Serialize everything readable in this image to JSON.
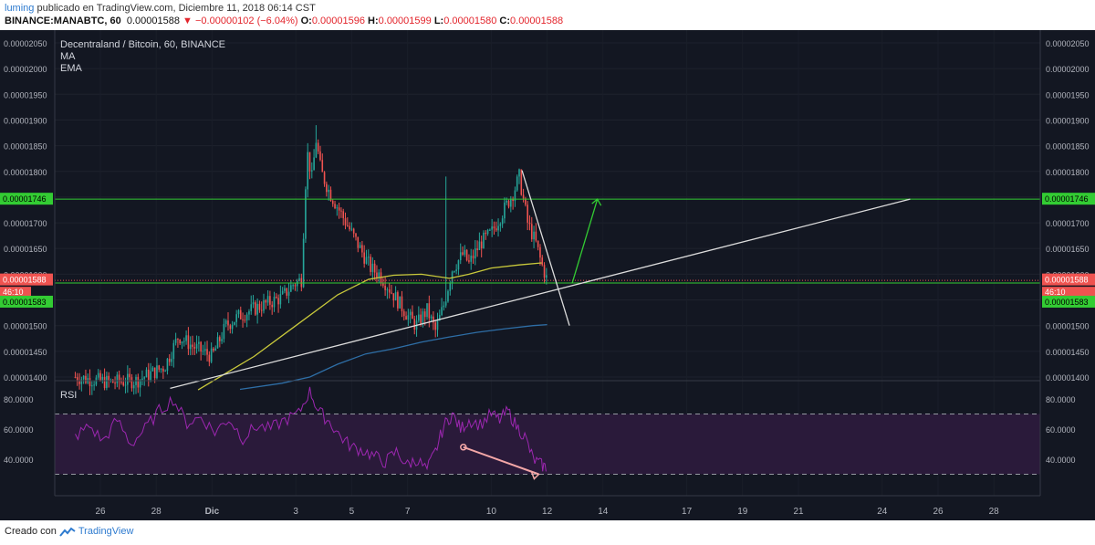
{
  "header": {
    "user": "luming",
    "published": "publicado en TradingView.com, Diciembre 11, 2018 06:14 CST",
    "symbol": "BINANCE:MANABTC, 60",
    "last": "0.00001588",
    "arrow": "▼",
    "change": "−0.00000102 (−6.04%)",
    "o_label": "O:",
    "o": "0.00001596",
    "h_label": "H:",
    "h": "0.00001599",
    "l_label": "L:",
    "l": "0.00001580",
    "c_label": "C:",
    "c": "0.00001588"
  },
  "legend": {
    "title": "Decentraland / Bitcoin, 60, BINANCE",
    "ma": "MA",
    "ema": "EMA"
  },
  "rsi_label": "RSI",
  "price_tags": {
    "resistance": "0.00001746",
    "current": "0.00001588",
    "countdown": "46:10",
    "support": "0.00001583"
  },
  "footer": {
    "prefix": "Creado con",
    "brand": "TradingView"
  },
  "colors": {
    "background": "#131722",
    "up": "#26a69a",
    "down": "#ef5350",
    "ma": "#c9c93b",
    "ema": "#2e6ea6",
    "rsi": "#9c27b0",
    "levels": "#33cc33",
    "trend": "#dcdcdc"
  },
  "chart_data": [
    {
      "type": "candlestick",
      "title": "Decentraland / Bitcoin, 60, BINANCE",
      "ylim": [
        1.375e-05,
        2.065e-05
      ],
      "y_ticks": [
        "0.00002050",
        "0.00002000",
        "0.00001950",
        "0.00001900",
        "0.00001850",
        "0.00001800",
        "0.00001750",
        "0.00001700",
        "0.00001650",
        "0.00001600",
        "0.00001550",
        "0.00001500",
        "0.00001450",
        "0.00001400"
      ],
      "x_ticks": [
        "26",
        "28",
        "Dic",
        "3",
        "5",
        "7",
        "10",
        "12",
        "14",
        "17",
        "19",
        "21",
        "24",
        "26",
        "28"
      ],
      "price_path": [
        [
          25.1,
          1400
        ],
        [
          26.3,
          1390
        ],
        [
          27.3,
          1393
        ],
        [
          28.3,
          1420
        ],
        [
          28.8,
          1480
        ],
        [
          29.3,
          1460
        ],
        [
          30.0,
          1440
        ],
        [
          30.5,
          1500
        ],
        [
          31.0,
          1520
        ],
        [
          31.6,
          1535
        ],
        [
          32.5,
          1555
        ],
        [
          32.9,
          1580
        ],
        [
          33.2,
          1590
        ],
        [
          33.4,
          1840
        ],
        [
          33.6,
          1780
        ],
        [
          33.7,
          1870
        ],
        [
          33.9,
          1800
        ],
        [
          34.2,
          1760
        ],
        [
          34.6,
          1720
        ],
        [
          35.0,
          1680
        ],
        [
          35.4,
          1640
        ],
        [
          35.7,
          1610
        ],
        [
          36.0,
          1600
        ],
        [
          36.5,
          1560
        ],
        [
          37.0,
          1520
        ],
        [
          37.3,
          1500
        ],
        [
          37.7,
          1530
        ],
        [
          38.0,
          1490
        ],
        [
          38.3,
          1540
        ],
        [
          38.6,
          1610
        ],
        [
          39.0,
          1640
        ],
        [
          39.2,
          1620
        ],
        [
          39.6,
          1660
        ],
        [
          40.0,
          1680
        ],
        [
          40.4,
          1720
        ],
        [
          40.8,
          1760
        ],
        [
          41.0,
          1790
        ],
        [
          41.3,
          1700
        ],
        [
          41.6,
          1660
        ],
        [
          41.8,
          1620
        ],
        [
          42.0,
          1588
        ]
      ],
      "series": [
        {
          "name": "MA",
          "values": [
            [
              29.5,
              1375
            ],
            [
              31.5,
              1440
            ],
            [
              33.0,
              1500
            ],
            [
              34.5,
              1560
            ],
            [
              35.6,
              1590
            ],
            [
              36.5,
              1598
            ],
            [
              37.5,
              1600
            ],
            [
              38.5,
              1592
            ],
            [
              39.2,
              1600
            ],
            [
              40.0,
              1612
            ],
            [
              41.0,
              1618
            ],
            [
              41.8,
              1622
            ]
          ]
        },
        {
          "name": "EMA",
          "values": [
            [
              31.0,
              1376
            ],
            [
              32.5,
              1388
            ],
            [
              33.5,
              1400
            ],
            [
              34.5,
              1425
            ],
            [
              35.5,
              1445
            ],
            [
              36.5,
              1455
            ],
            [
              37.5,
              1468
            ],
            [
              38.5,
              1478
            ],
            [
              39.5,
              1487
            ],
            [
              40.5,
              1494
            ],
            [
              41.5,
              1500
            ],
            [
              42.0,
              1502
            ]
          ]
        }
      ],
      "levels": [
        {
          "label": "0.00001746",
          "y": 1746
        },
        {
          "label": "0.00001583",
          "y": 1583
        },
        {
          "label": "0.00001588",
          "y": 1588
        }
      ],
      "annotations": {
        "trendline": [
          [
            28.5,
            1378
          ],
          [
            55.0,
            1746
          ]
        ],
        "descending": [
          [
            41.1,
            1802
          ],
          [
            42.8,
            1500
          ]
        ],
        "arrow": [
          [
            42.9,
            1583
          ],
          [
            43.8,
            1746
          ]
        ]
      }
    },
    {
      "type": "line",
      "title": "RSI",
      "ylim": [
        25,
        92
      ],
      "y_ticks": [
        "80.0000",
        "60.0000",
        "40.0000"
      ],
      "bands": [
        30,
        70
      ],
      "rsi_path": [
        [
          25.1,
          55
        ],
        [
          25.6,
          62
        ],
        [
          26.1,
          52
        ],
        [
          26.6,
          66
        ],
        [
          27.1,
          50
        ],
        [
          27.6,
          60
        ],
        [
          28.1,
          72
        ],
        [
          28.6,
          80
        ],
        [
          29.1,
          64
        ],
        [
          29.6,
          68
        ],
        [
          30.1,
          58
        ],
        [
          30.6,
          67
        ],
        [
          31.1,
          54
        ],
        [
          31.6,
          62
        ],
        [
          32.1,
          60
        ],
        [
          32.6,
          66
        ],
        [
          33.1,
          70
        ],
        [
          33.5,
          86
        ],
        [
          33.8,
          72
        ],
        [
          34.2,
          65
        ],
        [
          34.6,
          55
        ],
        [
          35.0,
          48
        ],
        [
          35.4,
          46
        ],
        [
          35.8,
          42
        ],
        [
          36.2,
          38
        ],
        [
          36.6,
          45
        ],
        [
          37.0,
          36
        ],
        [
          37.3,
          40
        ],
        [
          37.7,
          33
        ],
        [
          38.0,
          45
        ],
        [
          38.3,
          62
        ],
        [
          38.6,
          70
        ],
        [
          38.9,
          60
        ],
        [
          39.2,
          66
        ],
        [
          39.6,
          63
        ],
        [
          40.0,
          70
        ],
        [
          40.3,
          66
        ],
        [
          40.6,
          72
        ],
        [
          40.9,
          62
        ],
        [
          41.2,
          55
        ],
        [
          41.5,
          40
        ],
        [
          41.8,
          36
        ],
        [
          42.0,
          34
        ]
      ],
      "annotation": [
        [
          39.0,
          48
        ],
        [
          41.7,
          30
        ]
      ]
    }
  ]
}
